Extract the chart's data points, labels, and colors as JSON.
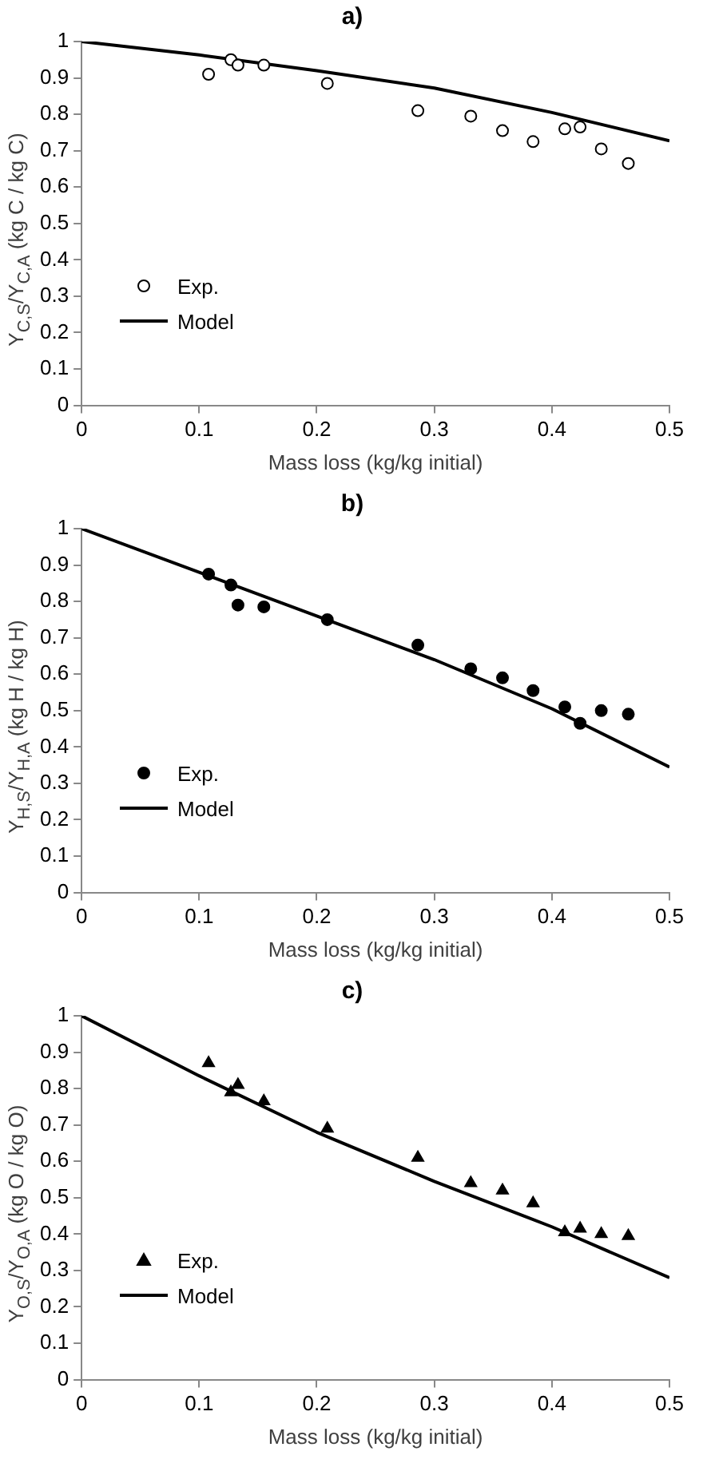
{
  "chart_data": [
    {
      "type": "scatter",
      "title": "a)",
      "xlabel": "Mass loss (kg/kg initial)",
      "ylabel": "Y$_{C,S}$/Y$_{C,A}$  (kg C / kg C)",
      "xlim": [
        0,
        0.5
      ],
      "xticks": [
        0,
        0.1,
        0.2,
        0.3,
        0.4,
        0.5
      ],
      "ylim": [
        0,
        1
      ],
      "yticks": [
        0,
        0.1,
        0.2,
        0.3,
        0.4,
        0.5,
        0.6,
        0.7,
        0.8,
        0.9,
        1
      ],
      "grid": false,
      "legend": "bottom left",
      "series": [
        {
          "name": "Exp.",
          "marker": "circle",
          "color": "#ffffff",
          "x": [
            0.108,
            0.127,
            0.133,
            0.155,
            0.209,
            0.286,
            0.331,
            0.358,
            0.384,
            0.411,
            0.424,
            0.442,
            0.465
          ],
          "values": [
            0.91,
            0.95,
            0.935,
            0.935,
            0.885,
            0.81,
            0.795,
            0.755,
            0.725,
            0.76,
            0.765,
            0.705,
            0.665
          ]
        },
        {
          "name": "Model",
          "type": "line",
          "marker": "none",
          "color": "#000000",
          "x": [
            0,
            0.1,
            0.2,
            0.3,
            0.4,
            0.5
          ],
          "values": [
            1,
            0.963,
            0.92,
            0.872,
            0.805,
            0.727
          ]
        }
      ]
    },
    {
      "type": "scatter",
      "title": "b)",
      "xlabel": "Mass loss (kg/kg initial)",
      "ylabel": "Y$_{H,S}$/Y$_{H,A}$ (kg H / kg H)",
      "xlim": [
        0,
        0.5
      ],
      "xticks": [
        0,
        0.1,
        0.2,
        0.3,
        0.4,
        0.5
      ],
      "ylim": [
        0,
        1
      ],
      "yticks": [
        0,
        0.1,
        0.2,
        0.3,
        0.4,
        0.5,
        0.6,
        0.7,
        0.8,
        0.9,
        1
      ],
      "grid": false,
      "legend": "bottom left",
      "series": [
        {
          "name": "Exp.",
          "marker": "circle",
          "color": "#000000",
          "x": [
            0.108,
            0.127,
            0.133,
            0.155,
            0.209,
            0.286,
            0.331,
            0.358,
            0.384,
            0.411,
            0.424,
            0.442,
            0.465
          ],
          "values": [
            0.875,
            0.845,
            0.79,
            0.785,
            0.75,
            0.68,
            0.615,
            0.59,
            0.555,
            0.51,
            0.465,
            0.5,
            0.49
          ]
        },
        {
          "name": "Model",
          "type": "line",
          "marker": "none",
          "color": "#000000",
          "x": [
            0,
            0.1,
            0.2,
            0.3,
            0.4,
            0.5
          ],
          "values": [
            1,
            0.88,
            0.76,
            0.64,
            0.505,
            0.345
          ]
        }
      ]
    },
    {
      "type": "scatter",
      "title": "c)",
      "xlabel": "Mass loss (kg/kg initial)",
      "ylabel": "Y$_{O,S}$/Y$_{O,A}$ (kg O / kg O)",
      "xlim": [
        0,
        0.5
      ],
      "xticks": [
        0,
        0.1,
        0.2,
        0.3,
        0.4,
        0.5
      ],
      "ylim": [
        0,
        1
      ],
      "yticks": [
        0,
        0.1,
        0.2,
        0.3,
        0.4,
        0.5,
        0.6,
        0.7,
        0.8,
        0.9,
        1
      ],
      "grid": false,
      "legend": "bottom left",
      "series": [
        {
          "name": "Exp.",
          "marker": "triangle",
          "color": "#000000",
          "x": [
            0.108,
            0.127,
            0.133,
            0.155,
            0.209,
            0.286,
            0.331,
            0.358,
            0.384,
            0.411,
            0.424,
            0.442,
            0.465
          ],
          "values": [
            0.87,
            0.79,
            0.81,
            0.765,
            0.69,
            0.61,
            0.54,
            0.52,
            0.485,
            0.405,
            0.415,
            0.4,
            0.395
          ]
        },
        {
          "name": "Model",
          "type": "line",
          "marker": "none",
          "color": "#000000",
          "x": [
            0,
            0.1,
            0.2,
            0.3,
            0.4,
            0.5
          ],
          "values": [
            1,
            0.835,
            0.68,
            0.545,
            0.42,
            0.28
          ]
        }
      ]
    }
  ]
}
